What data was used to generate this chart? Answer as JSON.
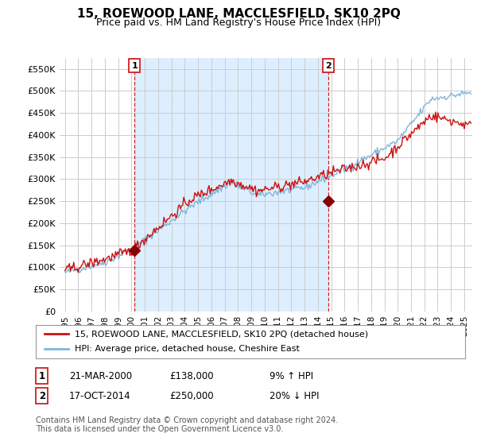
{
  "title": "15, ROEWOOD LANE, MACCLESFIELD, SK10 2PQ",
  "subtitle": "Price paid vs. HM Land Registry's House Price Index (HPI)",
  "ylim": [
    0,
    575000
  ],
  "yticks": [
    0,
    50000,
    100000,
    150000,
    200000,
    250000,
    300000,
    350000,
    400000,
    450000,
    500000,
    550000
  ],
  "ytick_labels": [
    "£0",
    "£50K",
    "£100K",
    "£150K",
    "£200K",
    "£250K",
    "£300K",
    "£350K",
    "£400K",
    "£450K",
    "£500K",
    "£550K"
  ],
  "sale1_date": 2000.22,
  "sale1_price": 138000,
  "sale1_label": "1",
  "sale2_date": 2014.79,
  "sale2_price": 250000,
  "sale2_label": "2",
  "hpi_color": "#7eb6d9",
  "price_color": "#cc1111",
  "sale_marker_color": "#880000",
  "vline_color": "#cc2222",
  "grid_color": "#cccccc",
  "fill_color": "#ddeeff",
  "bg_color": "#ffffff",
  "legend_label_price": "15, ROEWOOD LANE, MACCLESFIELD, SK10 2PQ (detached house)",
  "legend_label_hpi": "HPI: Average price, detached house, Cheshire East",
  "table_row1": [
    "1",
    "21-MAR-2000",
    "£138,000",
    "9% ↑ HPI"
  ],
  "table_row2": [
    "2",
    "17-OCT-2014",
    "£250,000",
    "20% ↓ HPI"
  ],
  "footer": "Contains HM Land Registry data © Crown copyright and database right 2024.\nThis data is licensed under the Open Government Licence v3.0.",
  "title_fontsize": 11,
  "subtitle_fontsize": 9,
  "tick_fontsize": 8,
  "legend_fontsize": 8,
  "table_fontsize": 8.5,
  "footer_fontsize": 7
}
